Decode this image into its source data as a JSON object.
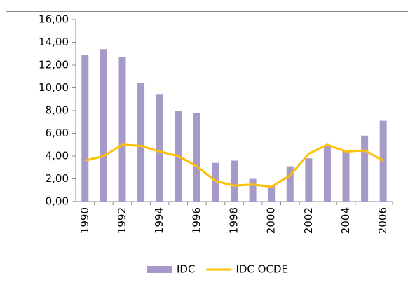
{
  "chart_data": {
    "type": "bar_line",
    "categories": [
      "1990",
      null,
      "1992",
      null,
      "1994",
      null,
      "1996",
      null,
      "1998",
      null,
      "2000",
      null,
      "2002",
      null,
      "2004",
      null,
      "2006"
    ],
    "series": [
      {
        "name": "IDC",
        "type": "bar",
        "color": "#a89ac8",
        "values": [
          12.9,
          13.4,
          12.7,
          10.4,
          9.4,
          8.0,
          7.8,
          3.4,
          3.6,
          2.0,
          1.4,
          3.1,
          3.8,
          4.9,
          4.5,
          5.8,
          7.1
        ]
      },
      {
        "name": "IDC OCDE",
        "type": "line",
        "color": "#ffc000",
        "values": [
          3.6,
          4.0,
          5.0,
          4.9,
          4.4,
          4.0,
          3.1,
          1.8,
          1.4,
          1.5,
          1.3,
          2.3,
          4.2,
          5.0,
          4.4,
          4.5,
          3.6
        ]
      }
    ],
    "ylim": [
      0,
      16
    ],
    "yticks": [
      {
        "value": 0,
        "label": "0,00"
      },
      {
        "value": 2,
        "label": "2,00"
      },
      {
        "value": 4,
        "label": "4,00"
      },
      {
        "value": 6,
        "label": "6,00"
      },
      {
        "value": 8,
        "label": "8,00"
      },
      {
        "value": 10,
        "label": "10,00"
      },
      {
        "value": 12,
        "label": "12,00"
      },
      {
        "value": 14,
        "label": "14,00"
      },
      {
        "value": 16,
        "label": "16,00"
      }
    ],
    "grid": false,
    "legend": "bottom"
  }
}
